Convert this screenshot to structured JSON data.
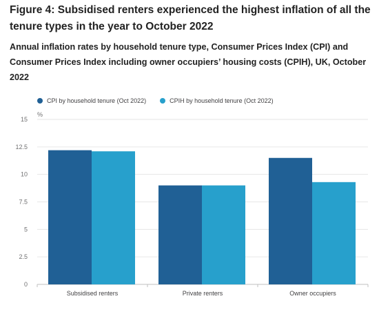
{
  "header": {
    "title": "Figure 4: Subsidised renters experienced the highest inflation of all the tenure types in the year to October 2022",
    "subtitle": "Annual inflation rates by household tenure type, Consumer Prices Index (CPI) and Consumer Prices Index including owner occupiers’ housing costs (CPIH), UK, October 2022"
  },
  "chart_data": {
    "type": "bar",
    "title": "",
    "xlabel": "",
    "ylabel": "%",
    "categories": [
      "Subsidised renters",
      "Private renters",
      "Owner occupiers"
    ],
    "series": [
      {
        "name": "CPI by household tenure (Oct 2022)",
        "values": [
          12.2,
          9.0,
          11.5
        ],
        "color": "#206095"
      },
      {
        "name": "CPIH by household tenure (Oct 2022)",
        "values": [
          12.1,
          9.0,
          9.3
        ],
        "color": "#27A0CC"
      }
    ],
    "ylim": [
      0,
      15
    ],
    "yticks": [
      "0",
      "2.5",
      "5",
      "7.5",
      "10",
      "12.5",
      "15"
    ],
    "grid": true,
    "legend_position": "top-left"
  }
}
